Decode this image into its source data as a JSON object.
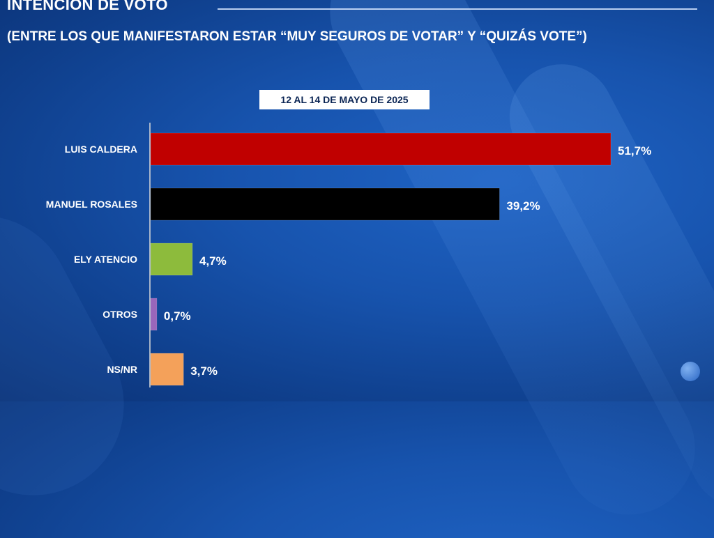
{
  "header": {
    "title": "INTENCIÓN DE VOTO",
    "subtitle": "(ENTRE LOS QUE MANIFESTARON ESTAR “MUY SEGUROS DE VOTAR” Y “QUIZÁS VOTE”)",
    "period": "12 AL 14 DE MAYO DE 2025"
  },
  "chart_data": {
    "type": "bar",
    "orientation": "horizontal",
    "title": "INTENCIÓN DE VOTO",
    "subtitle": "(ENTRE LOS QUE MANIFESTARON ESTAR “MUY SEGUROS DE VOTAR” Y “QUIZÁS VOTE”)",
    "xlabel": "",
    "ylabel": "",
    "xlim": [
      0,
      55
    ],
    "grid": false,
    "legend": "none",
    "categories": [
      "LUIS CALDERA",
      "MANUEL ROSALES",
      "ELY ATENCIO",
      "OTROS",
      "NS/NR"
    ],
    "values": [
      51.7,
      39.2,
      4.7,
      0.7,
      3.7
    ],
    "value_labels": [
      "51,7%",
      "39,2%",
      "4,7%",
      "0,7%",
      "3,7%"
    ],
    "colors": [
      "#c00000",
      "#000000",
      "#8dbb3c",
      "#9966bb",
      "#f4a15a"
    ]
  }
}
